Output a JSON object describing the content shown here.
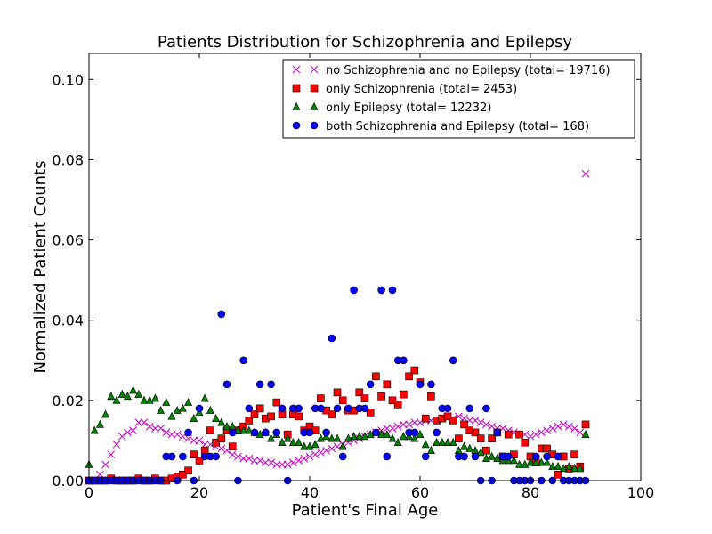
{
  "chart_data": {
    "type": "scatter",
    "title": "Patients Distribution for Schizophrenia and Epilepsy",
    "xlabel": "Patient's Final Age",
    "ylabel": "Normalized Patient Counts",
    "xlim": [
      0,
      100
    ],
    "ylim": [
      0,
      0.1065
    ],
    "xticks": [
      "0",
      "20",
      "40",
      "60",
      "80",
      "100"
    ],
    "yticks": [
      "0.00",
      "0.02",
      "0.04",
      "0.06",
      "0.08",
      "0.10"
    ],
    "grid": false,
    "legend_position": "top-right",
    "series": [
      {
        "name": "no Schizophrenia and no Epilepsy (total= 19716)",
        "marker": "x",
        "color": "#bf00bf",
        "x": [
          0,
          1,
          2,
          3,
          4,
          5,
          6,
          7,
          8,
          9,
          10,
          11,
          12,
          13,
          14,
          15,
          16,
          17,
          18,
          19,
          20,
          21,
          22,
          23,
          24,
          25,
          26,
          27,
          28,
          29,
          30,
          31,
          32,
          33,
          34,
          35,
          36,
          37,
          38,
          39,
          40,
          41,
          42,
          43,
          44,
          45,
          46,
          47,
          48,
          49,
          50,
          51,
          52,
          53,
          54,
          55,
          56,
          57,
          58,
          59,
          60,
          61,
          62,
          63,
          64,
          65,
          66,
          67,
          68,
          69,
          70,
          71,
          72,
          73,
          74,
          75,
          76,
          77,
          78,
          79,
          80,
          81,
          82,
          83,
          84,
          85,
          86,
          87,
          88,
          89,
          90
        ],
        "y": [
          0.0,
          0.0,
          0.0015,
          0.004,
          0.0065,
          0.009,
          0.011,
          0.012,
          0.0125,
          0.0145,
          0.0145,
          0.0135,
          0.013,
          0.013,
          0.012,
          0.0115,
          0.0115,
          0.011,
          0.0105,
          0.01,
          0.01,
          0.009,
          0.009,
          0.0085,
          0.008,
          0.0075,
          0.0065,
          0.006,
          0.0055,
          0.0055,
          0.005,
          0.005,
          0.0045,
          0.0045,
          0.004,
          0.004,
          0.004,
          0.0045,
          0.005,
          0.0055,
          0.006,
          0.0065,
          0.007,
          0.0075,
          0.008,
          0.0085,
          0.009,
          0.0095,
          0.01,
          0.0105,
          0.011,
          0.0115,
          0.012,
          0.0125,
          0.013,
          0.013,
          0.0135,
          0.014,
          0.014,
          0.0145,
          0.0145,
          0.015,
          0.015,
          0.015,
          0.0155,
          0.0155,
          0.0155,
          0.016,
          0.0155,
          0.015,
          0.015,
          0.0145,
          0.014,
          0.0135,
          0.013,
          0.013,
          0.0125,
          0.012,
          0.0115,
          0.0115,
          0.011,
          0.0115,
          0.012,
          0.0125,
          0.013,
          0.0135,
          0.014,
          0.0135,
          0.013,
          0.012,
          0.0765
        ]
      },
      {
        "name": "only Schizophrenia (total= 2453)",
        "marker": "s",
        "color": "#ff0000",
        "x": [
          0,
          1,
          2,
          3,
          4,
          5,
          6,
          7,
          8,
          9,
          10,
          11,
          12,
          13,
          14,
          15,
          16,
          17,
          18,
          19,
          20,
          21,
          22,
          23,
          24,
          25,
          26,
          27,
          28,
          29,
          30,
          31,
          32,
          33,
          34,
          35,
          36,
          37,
          38,
          39,
          40,
          41,
          42,
          43,
          44,
          45,
          46,
          47,
          48,
          49,
          50,
          51,
          52,
          53,
          54,
          55,
          56,
          57,
          58,
          59,
          60,
          61,
          62,
          63,
          64,
          65,
          66,
          67,
          68,
          69,
          70,
          71,
          72,
          73,
          74,
          75,
          76,
          77,
          78,
          79,
          80,
          81,
          82,
          83,
          84,
          85,
          86,
          87,
          88,
          89,
          90
        ],
        "y": [
          0.0,
          0.0,
          0.0,
          0.0,
          0.0005,
          0.0,
          0.0,
          0.0,
          0.0,
          0.0005,
          0.0,
          0.0,
          0.0005,
          0.0,
          0.0,
          0.0005,
          0.001,
          0.0015,
          0.0025,
          0.0065,
          0.005,
          0.0075,
          0.0125,
          0.0095,
          0.0105,
          0.0125,
          0.0085,
          0.0125,
          0.0135,
          0.015,
          0.0165,
          0.018,
          0.0155,
          0.016,
          0.0195,
          0.0165,
          0.0115,
          0.0165,
          0.016,
          0.0125,
          0.0135,
          0.0125,
          0.0205,
          0.0175,
          0.0165,
          0.022,
          0.02,
          0.0175,
          0.0175,
          0.022,
          0.0205,
          0.017,
          0.026,
          0.021,
          0.024,
          0.02,
          0.019,
          0.0215,
          0.026,
          0.0275,
          0.0245,
          0.0155,
          0.021,
          0.015,
          0.0155,
          0.016,
          0.015,
          0.0105,
          0.014,
          0.0125,
          0.012,
          0.0105,
          0.0075,
          0.0105,
          0.012,
          0.006,
          0.0115,
          0.0065,
          0.0115,
          0.0095,
          0.006,
          0.0045,
          0.008,
          0.008,
          0.0065,
          0.0015,
          0.006,
          0.003,
          0.0065,
          0.0035,
          0.014
        ]
      },
      {
        "name": "only Epilepsy (total= 12232)",
        "marker": "^",
        "color": "#008000",
        "x": [
          0,
          1,
          2,
          3,
          4,
          5,
          6,
          7,
          8,
          9,
          10,
          11,
          12,
          13,
          14,
          15,
          16,
          17,
          18,
          19,
          20,
          21,
          22,
          23,
          24,
          25,
          26,
          27,
          28,
          29,
          30,
          31,
          32,
          33,
          34,
          35,
          36,
          37,
          38,
          39,
          40,
          41,
          42,
          43,
          44,
          45,
          46,
          47,
          48,
          49,
          50,
          51,
          52,
          53,
          54,
          55,
          56,
          57,
          58,
          59,
          60,
          61,
          62,
          63,
          64,
          65,
          66,
          67,
          68,
          69,
          70,
          71,
          72,
          73,
          74,
          75,
          76,
          77,
          78,
          79,
          80,
          81,
          82,
          83,
          84,
          85,
          86,
          87,
          88,
          89,
          90
        ],
        "y": [
          0.004,
          0.0125,
          0.014,
          0.0165,
          0.021,
          0.02,
          0.0215,
          0.021,
          0.0225,
          0.0215,
          0.02,
          0.02,
          0.0205,
          0.0175,
          0.0195,
          0.016,
          0.0175,
          0.018,
          0.0195,
          0.0155,
          0.017,
          0.0205,
          0.0175,
          0.0155,
          0.0145,
          0.0135,
          0.0135,
          0.0125,
          0.0125,
          0.0125,
          0.012,
          0.0115,
          0.012,
          0.0105,
          0.0115,
          0.0095,
          0.0105,
          0.0095,
          0.0095,
          0.0085,
          0.0085,
          0.009,
          0.0105,
          0.011,
          0.0105,
          0.0105,
          0.0085,
          0.0105,
          0.011,
          0.011,
          0.011,
          0.0115,
          0.012,
          0.0115,
          0.0115,
          0.0105,
          0.0095,
          0.011,
          0.011,
          0.0105,
          0.0115,
          0.009,
          0.0075,
          0.0095,
          0.0095,
          0.0095,
          0.0095,
          0.0075,
          0.0085,
          0.008,
          0.0075,
          0.007,
          0.0055,
          0.006,
          0.0055,
          0.005,
          0.005,
          0.005,
          0.004,
          0.004,
          0.0045,
          0.0045,
          0.0045,
          0.0045,
          0.0035,
          0.0035,
          0.003,
          0.0035,
          0.003,
          0.003,
          0.0115
        ]
      },
      {
        "name": "both Schizophrenia and Epilepsy (total= 168)",
        "marker": "o",
        "color": "#0000ff",
        "x": [
          0,
          1,
          2,
          3,
          4,
          5,
          6,
          7,
          8,
          9,
          10,
          11,
          12,
          13,
          14,
          15,
          16,
          17,
          18,
          19,
          20,
          21,
          22,
          23,
          24,
          25,
          26,
          27,
          28,
          29,
          30,
          31,
          32,
          33,
          34,
          35,
          36,
          37,
          38,
          39,
          40,
          41,
          42,
          43,
          44,
          45,
          46,
          47,
          48,
          49,
          50,
          51,
          52,
          53,
          54,
          55,
          56,
          57,
          58,
          59,
          60,
          61,
          62,
          63,
          64,
          65,
          66,
          67,
          68,
          69,
          70,
          71,
          72,
          73,
          74,
          75,
          76,
          77,
          78,
          79,
          80,
          81,
          82,
          83,
          84,
          85,
          86,
          87,
          88,
          89,
          90
        ],
        "y": [
          0.0,
          0.0,
          0.0,
          0.0,
          0.0,
          0.0,
          0.0,
          0.0,
          0.0,
          0.0,
          0.0,
          0.0,
          0.0,
          0.0,
          0.006,
          0.006,
          0.0,
          0.006,
          0.012,
          0.0,
          0.018,
          0.006,
          0.006,
          0.006,
          0.0415,
          0.024,
          0.012,
          0.0,
          0.03,
          0.018,
          0.012,
          0.024,
          0.012,
          0.024,
          0.012,
          0.018,
          0.0,
          0.018,
          0.018,
          0.012,
          0.012,
          0.018,
          0.018,
          0.012,
          0.0355,
          0.018,
          0.006,
          0.018,
          0.0475,
          0.018,
          0.018,
          0.024,
          0.012,
          0.0475,
          0.006,
          0.0475,
          0.03,
          0.03,
          0.012,
          0.012,
          0.024,
          0.006,
          0.024,
          0.012,
          0.018,
          0.018,
          0.03,
          0.006,
          0.006,
          0.018,
          0.006,
          0.0,
          0.018,
          0.0,
          0.012,
          0.006,
          0.006,
          0.0,
          0.0,
          0.0,
          0.0,
          0.006,
          0.0,
          0.006,
          0.0,
          0.006,
          0.0,
          0.0,
          0.0,
          0.0,
          0.0
        ]
      }
    ]
  }
}
